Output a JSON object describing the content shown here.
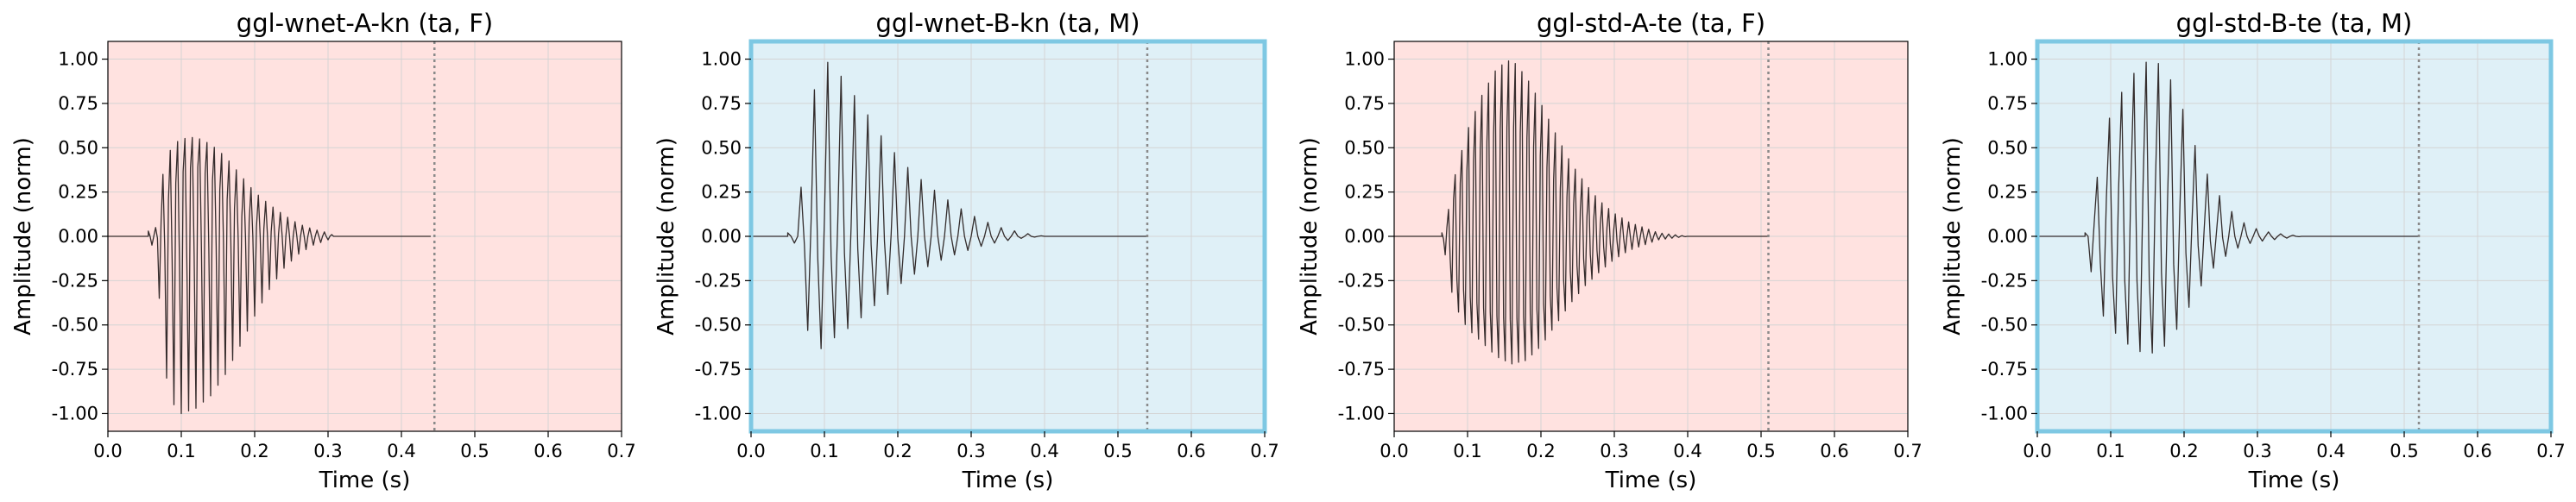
{
  "colors": {
    "female_bg": "#ffe2e0",
    "male_bg": "#dff0f7",
    "male_frame": "#7ec8e3",
    "grid": "#d4d4d4",
    "waveform": "#2a2222",
    "marker": "#8a8a8a"
  },
  "chart_data": [
    {
      "type": "line",
      "title": "ggl-wnet-A-kn (ta, F)",
      "xlabel": "Time (s)",
      "ylabel": "Amplitude (norm)",
      "xlim": [
        0.0,
        0.7
      ],
      "ylim": [
        -1.1,
        1.1
      ],
      "xticks": [
        "0.0",
        "0.1",
        "0.2",
        "0.3",
        "0.4",
        "0.5",
        "0.6",
        "0.7"
      ],
      "yticks": [
        "1.00",
        "0.75",
        "0.50",
        "0.25",
        "0.00",
        "-0.25",
        "-0.50",
        "-0.75",
        "-1.00"
      ],
      "grid": true,
      "speaker": "F",
      "end_marker": 0.445,
      "envelope": {
        "t": [
          0.055,
          0.065,
          0.07,
          0.075,
          0.08,
          0.09,
          0.1,
          0.12,
          0.14,
          0.16,
          0.18,
          0.2,
          0.22,
          0.24,
          0.26,
          0.28,
          0.3,
          0.31
        ],
        "upper": [
          0.03,
          0.05,
          0.2,
          0.35,
          0.45,
          0.52,
          0.55,
          0.56,
          0.52,
          0.45,
          0.35,
          0.25,
          0.18,
          0.12,
          0.07,
          0.04,
          0.02,
          0.0
        ],
        "lower": [
          -0.03,
          -0.07,
          -0.35,
          -0.6,
          -0.8,
          -0.95,
          -1.0,
          -0.97,
          -0.9,
          -0.78,
          -0.62,
          -0.45,
          -0.3,
          -0.18,
          -0.1,
          -0.05,
          -0.02,
          0.0
        ],
        "inner_upper": [
          0.0,
          0.0,
          0.05,
          0.12,
          0.18,
          0.28,
          0.36,
          0.4,
          0.33,
          0.22,
          0.12,
          0.06,
          0.03,
          0.0,
          0.0,
          0.0,
          0.0,
          0.0
        ],
        "inner_lower": [
          0.0,
          0.0,
          -0.02,
          -0.05,
          -0.1,
          -0.14,
          -0.14,
          -0.1,
          -0.06,
          -0.03,
          -0.01,
          0.0,
          0.0,
          0.0,
          0.0,
          0.0,
          0.0,
          0.0
        ]
      },
      "f0_hz": 200,
      "signal_end": 0.44
    },
    {
      "type": "line",
      "title": "ggl-wnet-B-kn (ta, M)",
      "xlabel": "Time (s)",
      "ylabel": "Amplitude (norm)",
      "xlim": [
        0.0,
        0.7
      ],
      "ylim": [
        -1.1,
        1.1
      ],
      "xticks": [
        "0.0",
        "0.1",
        "0.2",
        "0.3",
        "0.4",
        "0.5",
        "0.6",
        "0.7"
      ],
      "yticks": [
        "1.00",
        "0.75",
        "0.50",
        "0.25",
        "0.00",
        "-0.25",
        "-0.50",
        "-0.75",
        "-1.00"
      ],
      "grid": true,
      "speaker": "M",
      "end_marker": 0.54,
      "envelope": {
        "t": [
          0.05,
          0.06,
          0.065,
          0.07,
          0.08,
          0.09,
          0.1,
          0.12,
          0.14,
          0.16,
          0.18,
          0.2,
          0.22,
          0.25,
          0.28,
          0.31,
          0.34,
          0.37,
          0.4
        ],
        "upper": [
          0.02,
          0.03,
          0.15,
          0.35,
          0.7,
          0.9,
          1.0,
          0.92,
          0.8,
          0.68,
          0.55,
          0.45,
          0.36,
          0.26,
          0.17,
          0.1,
          0.05,
          0.02,
          0.0
        ],
        "lower": [
          -0.02,
          -0.04,
          -0.2,
          -0.4,
          -0.58,
          -0.65,
          -0.62,
          -0.55,
          -0.5,
          -0.42,
          -0.35,
          -0.28,
          -0.22,
          -0.15,
          -0.1,
          -0.06,
          -0.03,
          -0.01,
          0.0
        ],
        "inner_upper": [
          0.0,
          0.0,
          0.0,
          0.05,
          0.08,
          0.1,
          0.1,
          0.08,
          0.05,
          0.03,
          0.02,
          0.0,
          0.0,
          0.0,
          0.0,
          0.0,
          0.0,
          0.0,
          0.0
        ],
        "inner_lower": [
          0.0,
          0.0,
          0.0,
          -0.04,
          -0.08,
          -0.12,
          -0.12,
          -0.1,
          -0.08,
          -0.05,
          -0.03,
          -0.01,
          0.0,
          0.0,
          0.0,
          0.0,
          0.0,
          0.0,
          0.0
        ]
      },
      "f0_hz": 110,
      "signal_end": 0.54
    },
    {
      "type": "line",
      "title": "ggl-std-A-te (ta, F)",
      "xlabel": "Time (s)",
      "ylabel": "Amplitude (norm)",
      "xlim": [
        0.0,
        0.7
      ],
      "ylim": [
        -1.1,
        1.1
      ],
      "xticks": [
        "0.0",
        "0.1",
        "0.2",
        "0.3",
        "0.4",
        "0.5",
        "0.6",
        "0.7"
      ],
      "yticks": [
        "1.00",
        "0.75",
        "0.50",
        "0.25",
        "0.00",
        "-0.25",
        "-0.50",
        "-0.75",
        "-1.00"
      ],
      "grid": true,
      "speaker": "F",
      "end_marker": 0.51,
      "envelope": {
        "t": [
          0.065,
          0.072,
          0.08,
          0.09,
          0.1,
          0.12,
          0.14,
          0.16,
          0.18,
          0.2,
          0.22,
          0.24,
          0.26,
          0.28,
          0.3,
          0.32,
          0.34,
          0.36,
          0.38,
          0.4
        ],
        "upper": [
          0.02,
          0.1,
          0.3,
          0.45,
          0.6,
          0.8,
          0.95,
          1.0,
          0.9,
          0.75,
          0.58,
          0.42,
          0.3,
          0.2,
          0.13,
          0.08,
          0.05,
          0.02,
          0.01,
          0.0
        ],
        "lower": [
          -0.02,
          -0.15,
          -0.35,
          -0.45,
          -0.52,
          -0.6,
          -0.68,
          -0.72,
          -0.7,
          -0.62,
          -0.5,
          -0.38,
          -0.28,
          -0.2,
          -0.13,
          -0.08,
          -0.05,
          -0.02,
          -0.01,
          0.0
        ],
        "inner_upper": [
          0.0,
          0.05,
          0.2,
          0.3,
          0.38,
          0.5,
          0.6,
          0.62,
          0.56,
          0.45,
          0.3,
          0.2,
          0.12,
          0.07,
          0.03,
          0.0,
          0.0,
          0.0,
          0.0,
          0.0
        ],
        "inner_lower": [
          0.0,
          -0.05,
          -0.2,
          -0.28,
          -0.33,
          -0.4,
          -0.45,
          -0.47,
          -0.45,
          -0.4,
          -0.3,
          -0.2,
          -0.12,
          -0.07,
          -0.03,
          0.0,
          0.0,
          0.0,
          0.0,
          0.0
        ]
      },
      "f0_hz": 220,
      "signal_end": 0.51
    },
    {
      "type": "line",
      "title": "ggl-std-B-te (ta, M)",
      "xlabel": "Time (s)",
      "ylabel": "Amplitude (norm)",
      "xlim": [
        0.0,
        0.7
      ],
      "ylim": [
        -1.1,
        1.1
      ],
      "xticks": [
        "0.0",
        "0.1",
        "0.2",
        "0.3",
        "0.4",
        "0.5",
        "0.6",
        "0.7"
      ],
      "yticks": [
        "1.00",
        "0.75",
        "0.50",
        "0.25",
        "0.00",
        "-0.25",
        "-0.50",
        "-0.75",
        "-1.00"
      ],
      "grid": true,
      "speaker": "M",
      "end_marker": 0.52,
      "envelope": {
        "t": [
          0.065,
          0.07,
          0.075,
          0.08,
          0.09,
          0.1,
          0.12,
          0.14,
          0.16,
          0.18,
          0.2,
          0.22,
          0.24,
          0.26,
          0.28,
          0.3,
          0.32,
          0.34,
          0.36
        ],
        "upper": [
          0.02,
          0.08,
          0.2,
          0.3,
          0.5,
          0.7,
          0.85,
          0.97,
          1.0,
          0.9,
          0.7,
          0.45,
          0.28,
          0.16,
          0.08,
          0.04,
          0.02,
          0.01,
          0.0
        ],
        "lower": [
          -0.02,
          -0.1,
          -0.25,
          -0.35,
          -0.45,
          -0.52,
          -0.6,
          -0.65,
          -0.66,
          -0.6,
          -0.45,
          -0.3,
          -0.18,
          -0.1,
          -0.05,
          -0.03,
          -0.02,
          -0.01,
          0.0
        ],
        "inner_upper": [
          0.0,
          0.0,
          0.05,
          0.1,
          0.2,
          0.25,
          0.3,
          0.3,
          0.28,
          0.2,
          0.12,
          0.06,
          0.03,
          0.0,
          0.0,
          0.0,
          0.0,
          0.0,
          0.0
        ],
        "inner_lower": [
          0.0,
          0.0,
          -0.05,
          -0.1,
          -0.18,
          -0.22,
          -0.25,
          -0.25,
          -0.22,
          -0.18,
          -0.1,
          -0.05,
          -0.02,
          0.0,
          0.0,
          0.0,
          0.0,
          0.0,
          0.0
        ]
      },
      "f0_hz": 120,
      "signal_end": 0.52
    }
  ]
}
